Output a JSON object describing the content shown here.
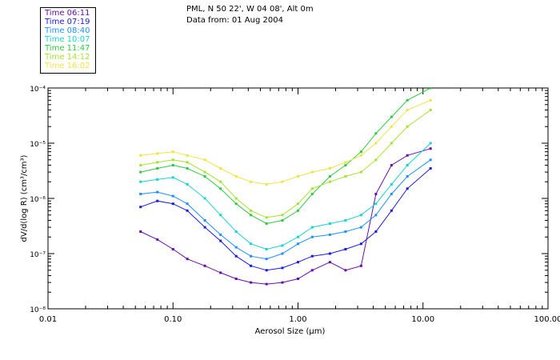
{
  "header": {
    "station": "PML, N 50 22', W 04 08', Alt 0m",
    "date_line": "Data from: 01 Aug 2004"
  },
  "legend": [
    {
      "label": "Time 06:11",
      "color": "#6a0dad"
    },
    {
      "label": "Time 07:19",
      "color": "#1a1ae6"
    },
    {
      "label": "Time 08:40",
      "color": "#1e90ff"
    },
    {
      "label": "Time 10:07",
      "color": "#19d3d3"
    },
    {
      "label": "Time 11:47",
      "color": "#2ecc40"
    },
    {
      "label": "Time 14:12",
      "color": "#a6e22e"
    },
    {
      "label": "Time 16:02",
      "color": "#f0e442"
    }
  ],
  "chart_data": {
    "type": "line",
    "xscale": "log",
    "yscale": "log",
    "xlim": [
      0.01,
      100.0
    ],
    "ylim": [
      1e-08,
      0.0001
    ],
    "xlabel": "Aerosol Size (μm)",
    "ylabel": "dV/d(log R) (cm³/cm³)",
    "xticks": [
      "0.01",
      "0.10",
      "1.00",
      "10.00",
      "100.00"
    ],
    "yticks": [
      "10⁻⁸",
      "10⁻⁷",
      "10⁻⁶",
      "10⁻⁵",
      "10⁻⁴"
    ],
    "x": [
      0.055,
      0.075,
      0.1,
      0.13,
      0.18,
      0.24,
      0.32,
      0.42,
      0.56,
      0.75,
      1.0,
      1.3,
      1.8,
      2.4,
      3.2,
      4.2,
      5.6,
      7.5,
      11.5
    ],
    "series": [
      {
        "name": "Time 06:11",
        "color": "#6a0dad",
        "values": [
          2.5e-07,
          1.8e-07,
          1.2e-07,
          8e-08,
          6e-08,
          4.5e-08,
          3.5e-08,
          3e-08,
          2.8e-08,
          3e-08,
          3.5e-08,
          5e-08,
          7e-08,
          5e-08,
          6e-08,
          1.2e-06,
          4e-06,
          6e-06,
          8e-06
        ]
      },
      {
        "name": "Time 07:19",
        "color": "#1a1ae6",
        "values": [
          7e-07,
          9e-07,
          8e-07,
          6e-07,
          3e-07,
          1.7e-07,
          9e-08,
          6e-08,
          5e-08,
          5.5e-08,
          7e-08,
          9e-08,
          1e-07,
          1.2e-07,
          1.5e-07,
          2.5e-07,
          6e-07,
          1.5e-06,
          3.5e-06
        ]
      },
      {
        "name": "Time 08:40",
        "color": "#1e90ff",
        "values": [
          1.2e-06,
          1.3e-06,
          1.1e-06,
          8e-07,
          4e-07,
          2.2e-07,
          1.3e-07,
          9e-08,
          8e-08,
          1e-07,
          1.5e-07,
          2e-07,
          2.2e-07,
          2.5e-07,
          3e-07,
          5e-07,
          1.2e-06,
          2.5e-06,
          5e-06
        ]
      },
      {
        "name": "Time 10:07",
        "color": "#19d3d3",
        "values": [
          2e-06,
          2.2e-06,
          2.4e-06,
          1.8e-06,
          1e-06,
          5e-07,
          2.5e-07,
          1.5e-07,
          1.2e-07,
          1.4e-07,
          2e-07,
          3e-07,
          3.5e-07,
          4e-07,
          5e-07,
          8e-07,
          1.8e-06,
          4e-06,
          1e-05
        ]
      },
      {
        "name": "Time 11:47",
        "color": "#2ecc40",
        "values": [
          3e-06,
          3.5e-06,
          4e-06,
          3.5e-06,
          2.5e-06,
          1.5e-06,
          8e-07,
          5e-07,
          3.5e-07,
          4e-07,
          6e-07,
          1.2e-06,
          2.5e-06,
          4e-06,
          7e-06,
          1.5e-05,
          3e-05,
          6e-05,
          0.0001
        ]
      },
      {
        "name": "Time 14:12",
        "color": "#a6e22e",
        "values": [
          4e-06,
          4.5e-06,
          5e-06,
          4.5e-06,
          3e-06,
          2e-06,
          1e-06,
          6e-07,
          4.5e-07,
          5e-07,
          8e-07,
          1.5e-06,
          2e-06,
          2.5e-06,
          3e-06,
          5e-06,
          1e-05,
          2e-05,
          4e-05
        ]
      },
      {
        "name": "Time 16:02",
        "color": "#f0e442",
        "values": [
          6e-06,
          6.5e-06,
          7e-06,
          6e-06,
          5e-06,
          3.5e-06,
          2.5e-06,
          2e-06,
          1.8e-06,
          2e-06,
          2.5e-06,
          3e-06,
          3.5e-06,
          4.5e-06,
          6e-06,
          1e-05,
          2e-05,
          4e-05,
          6e-05
        ]
      }
    ]
  }
}
